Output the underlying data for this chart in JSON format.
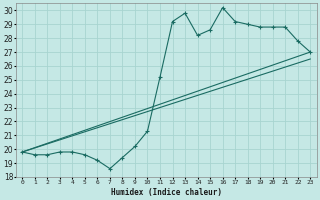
{
  "xlabel": "Humidex (Indice chaleur)",
  "ylabel": "",
  "bg_color": "#c5e8e5",
  "grid_color": "#a8d4d0",
  "line_color": "#1a6b62",
  "xlim": [
    -0.5,
    23.5
  ],
  "ylim": [
    18,
    30.5
  ],
  "yticks": [
    18,
    19,
    20,
    21,
    22,
    23,
    24,
    25,
    26,
    27,
    28,
    29,
    30
  ],
  "xticks": [
    0,
    1,
    2,
    3,
    4,
    5,
    6,
    7,
    8,
    9,
    10,
    11,
    12,
    13,
    14,
    15,
    16,
    17,
    18,
    19,
    20,
    21,
    22,
    23
  ],
  "xtick_labels": [
    "0",
    "1",
    "2",
    "3",
    "4",
    "5",
    "6",
    "7",
    "8",
    "9",
    "10",
    "11",
    "12",
    "13",
    "14",
    "15",
    "16",
    "17",
    "18",
    "19",
    "20",
    "21",
    "22",
    "23"
  ],
  "line1_x": [
    0,
    1,
    2,
    3,
    4,
    5,
    6,
    7,
    8,
    9,
    10,
    11,
    12,
    13,
    14,
    15,
    16,
    17,
    18,
    19,
    20,
    21,
    22,
    23
  ],
  "line1_y": [
    19.8,
    19.6,
    19.6,
    19.8,
    19.8,
    19.6,
    19.2,
    18.6,
    19.4,
    20.2,
    21.3,
    25.2,
    29.2,
    29.8,
    28.2,
    28.6,
    30.2,
    29.2,
    29.0,
    28.8,
    28.8,
    28.8,
    27.8,
    27.0
  ],
  "line2_x": [
    0,
    23
  ],
  "line2_y": [
    19.8,
    27.0
  ],
  "line3_x": [
    0,
    23
  ],
  "line3_y": [
    19.8,
    26.5
  ]
}
